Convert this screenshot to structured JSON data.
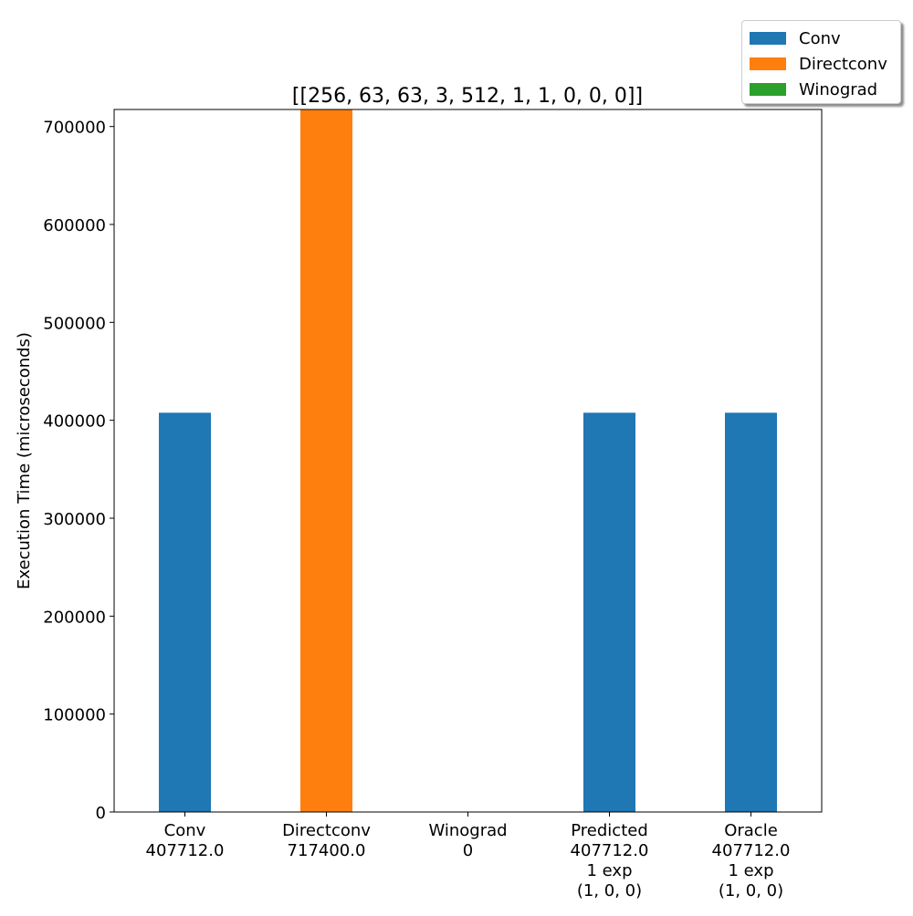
{
  "chart_data": {
    "type": "bar",
    "title": "[[256, 63, 63, 3, 512, 1, 1, 0, 0, 0]]",
    "xlabel": "",
    "ylabel": "Execution Time (microseconds)",
    "ylim": [
      0,
      717400
    ],
    "yticks": [
      0,
      100000,
      200000,
      300000,
      400000,
      500000,
      600000,
      700000
    ],
    "categories": [
      [
        "Conv",
        "407712.0"
      ],
      [
        "Directconv",
        "717400.0"
      ],
      [
        "Winograd",
        "0"
      ],
      [
        "Predicted",
        "407712.0",
        "1 exp",
        "(1, 0, 0)"
      ],
      [
        "Oracle",
        "407712.0",
        "1 exp",
        "(1, 0, 0)"
      ]
    ],
    "values": [
      407712.0,
      717400.0,
      0,
      407712.0,
      407712.0
    ],
    "bar_colors": [
      "#1f77b4",
      "#ff7f0e",
      "#2ca02c",
      "#1f77b4",
      "#1f77b4"
    ],
    "legend": {
      "placement": "top-right",
      "entries": [
        {
          "label": "Conv",
          "color": "#1f77b4"
        },
        {
          "label": "Directconv",
          "color": "#ff7f0e"
        },
        {
          "label": "Winograd",
          "color": "#2ca02c"
        }
      ]
    },
    "grid": false
  }
}
